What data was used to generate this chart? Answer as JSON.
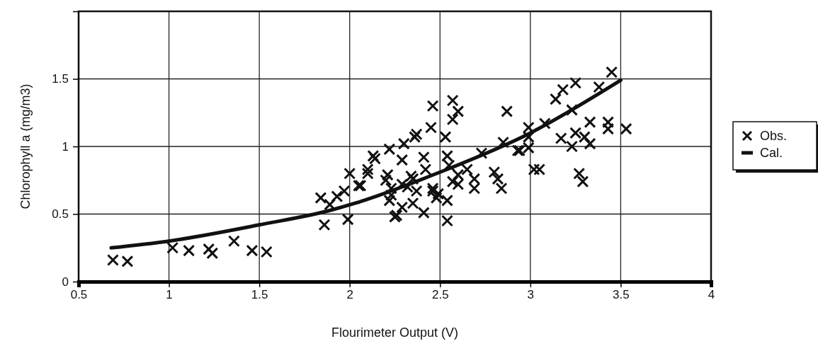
{
  "chart_data": {
    "type": "scatter",
    "xlabel": "Flourimeter Output (V)",
    "ylabel": "Chlorophyll a (mg/m3)",
    "xlim": [
      0.5,
      4
    ],
    "xticks": [
      0.5,
      1,
      1.5,
      2,
      2.5,
      3,
      3.5,
      4
    ],
    "ylim": [
      0,
      2
    ],
    "yticks": [
      0,
      0.5,
      1,
      1.5,
      {
        "value": 2,
        "label": null
      }
    ],
    "grid": true,
    "legend": "right",
    "series": [
      {
        "name": "Obs.",
        "marker": "cross",
        "color": "#111111",
        "x": [
          0.69,
          0.77,
          1.02,
          1.11,
          1.22,
          1.24,
          1.36,
          1.46,
          1.54,
          1.86,
          1.99,
          1.84,
          1.89,
          1.93,
          1.97,
          2.0,
          2.06,
          2.1,
          2.14,
          2.2,
          2.23,
          2.26,
          2.32,
          2.34,
          2.46,
          2.57,
          2.6,
          2.57,
          2.87,
          3.45,
          3.25,
          3.18,
          3.14,
          3.38,
          3.23,
          3.33,
          3.43,
          3.43,
          3.53,
          3.25,
          3.3,
          3.17,
          3.33,
          3.23,
          3.08,
          2.99,
          2.99,
          2.99,
          2.93,
          2.85,
          3.27,
          3.29,
          3.02,
          3.05,
          2.73,
          2.8,
          2.84,
          2.82,
          2.69,
          2.69,
          2.65,
          2.6,
          2.54,
          2.54,
          2.49,
          2.41,
          2.25,
          2.29,
          2.22,
          2.35,
          2.46,
          2.54,
          2.53,
          2.45,
          2.37,
          2.36,
          2.41,
          2.3,
          2.22,
          2.13,
          2.1,
          2.05,
          2.29,
          2.21,
          2.29,
          2.35,
          2.42,
          2.46,
          2.55,
          2.57,
          2.6,
          2.37,
          2.23,
          2.48,
          2.94
        ],
        "values": [
          0.16,
          0.15,
          0.25,
          0.23,
          0.24,
          0.21,
          0.3,
          0.23,
          0.22,
          0.42,
          0.46,
          0.62,
          0.57,
          0.63,
          0.67,
          0.8,
          0.71,
          0.8,
          0.91,
          0.75,
          0.64,
          0.49,
          0.7,
          0.78,
          1.3,
          1.34,
          1.26,
          1.2,
          1.26,
          1.55,
          1.47,
          1.42,
          1.35,
          1.44,
          1.27,
          1.18,
          1.18,
          1.13,
          1.13,
          1.1,
          1.07,
          1.06,
          1.02,
          1.0,
          1.17,
          1.14,
          1.07,
          0.99,
          0.97,
          1.03,
          0.8,
          0.74,
          0.83,
          0.83,
          0.95,
          0.81,
          0.69,
          0.76,
          0.69,
          0.76,
          0.83,
          0.72,
          0.45,
          0.6,
          0.65,
          0.51,
          0.48,
          0.55,
          0.6,
          0.58,
          0.69,
          0.93,
          1.07,
          1.14,
          1.09,
          1.07,
          0.92,
          1.02,
          0.98,
          0.93,
          0.83,
          0.71,
          0.9,
          0.79,
          0.72,
          0.76,
          0.83,
          0.67,
          0.86,
          0.74,
          0.79,
          0.67,
          0.69,
          0.62,
          0.97
        ]
      },
      {
        "name": "Cal.",
        "type": "line",
        "color": "#111111",
        "line_style": "solid",
        "x": [
          0.68,
          1.0,
          1.5,
          1.9,
          2.03,
          2.5,
          3.0,
          3.5
        ],
        "values": [
          0.25,
          0.3,
          0.42,
          0.53,
          0.58,
          0.81,
          1.1,
          1.49
        ]
      }
    ]
  }
}
